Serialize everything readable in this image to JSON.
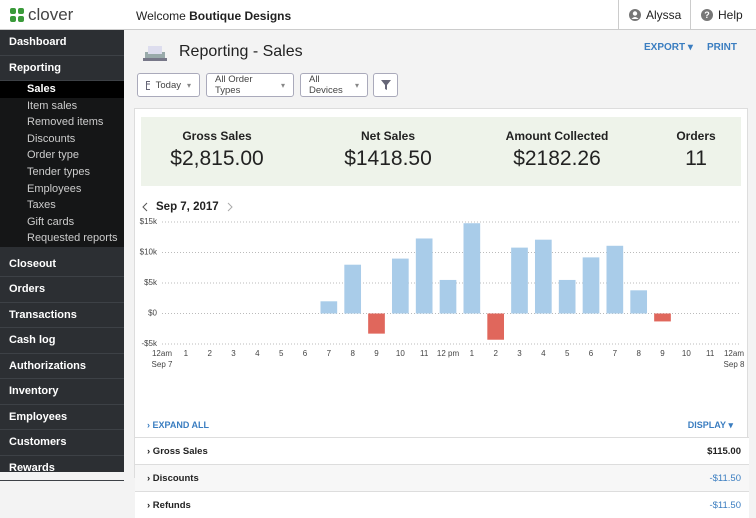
{
  "header": {
    "logo": "clover",
    "welcome": "Welcome",
    "business": "Boutique Designs",
    "user": "Alyssa",
    "help": "Help"
  },
  "sidebar": {
    "active_child": 0,
    "sections": [
      {
        "label": "Dashboard"
      },
      {
        "label": "Reporting",
        "children": [
          "Sales",
          "Item sales",
          "Removed items",
          "Discounts",
          "Order type",
          "Tender types",
          "Employees",
          "Taxes",
          "Gift cards",
          "Requested reports"
        ]
      },
      {
        "label": "Closeout"
      },
      {
        "label": "Orders"
      },
      {
        "label": "Transactions"
      },
      {
        "label": "Cash log"
      },
      {
        "label": "Authorizations"
      },
      {
        "label": "Inventory"
      },
      {
        "label": "Employees"
      },
      {
        "label": "Customers"
      },
      {
        "label": "Rewards"
      }
    ]
  },
  "page": {
    "title": "Reporting - Sales",
    "actions": [
      "EXPORT",
      "PRINT"
    ],
    "filters": [
      "Today",
      "All Order Types",
      "All Devices"
    ]
  },
  "summary": [
    {
      "label": "Gross Sales",
      "value": "$2,815.00"
    },
    {
      "label": "Net Sales",
      "value": "$1418.50"
    },
    {
      "label": "Amount Collected",
      "value": "$2182.26"
    },
    {
      "label": "Orders",
      "value": "11"
    }
  ],
  "chart_data": {
    "type": "bar",
    "title": "Sep 7, 2017",
    "categories": [
      "12am",
      "1",
      "2",
      "3",
      "4",
      "5",
      "6",
      "7",
      "8",
      "9",
      "10",
      "11",
      "12 pm",
      "1",
      "2",
      "3",
      "4",
      "5",
      "6",
      "7",
      "8",
      "9",
      "10",
      "11",
      "12am"
    ],
    "x_sublabels": [
      "Sep 7",
      "Sep 8"
    ],
    "values": [
      null,
      null,
      null,
      null,
      null,
      null,
      null,
      2000,
      8000,
      -3300,
      9000,
      12300,
      5500,
      14800,
      -4300,
      10800,
      12100,
      5500,
      9200,
      11100,
      3800,
      -1300,
      null,
      null,
      null
    ],
    "positive_color": "#a9cce9",
    "negative_color": "#e0675c",
    "ylim": [
      -5000,
      15000
    ],
    "yticks": [
      {
        "value": 15000,
        "label": "$15k"
      },
      {
        "value": 10000,
        "label": "$10k"
      },
      {
        "value": 5000,
        "label": "$5k"
      },
      {
        "value": 0,
        "label": "$0"
      },
      {
        "value": -5000,
        "label": "-$5k"
      }
    ],
    "grid": true
  },
  "details": {
    "expand": "EXPAND ALL",
    "display": "DISPLAY",
    "rows": [
      {
        "label": "Gross Sales",
        "value": "$115.00"
      },
      {
        "label": "Discounts",
        "value": "-$11.50"
      },
      {
        "label": "Refunds",
        "value": "-$11.50"
      }
    ]
  }
}
